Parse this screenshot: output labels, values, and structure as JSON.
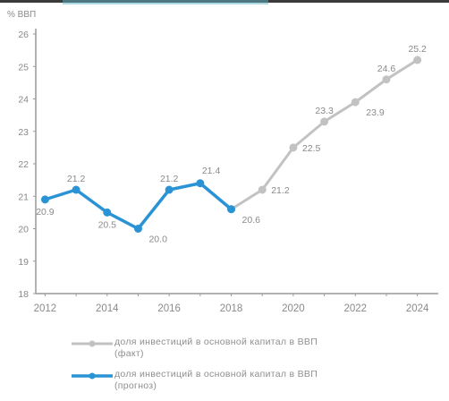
{
  "chart_data": {
    "type": "line",
    "ylabel": "% ВВП",
    "ylim": [
      18,
      26
    ],
    "y_ticks": [
      18,
      19,
      20,
      21,
      22,
      23,
      24,
      25,
      26
    ],
    "x_ticks": [
      2012,
      2014,
      2016,
      2018,
      2020,
      2022,
      2024
    ],
    "xlim": [
      2011.7,
      2024.5
    ],
    "series": [
      {
        "name": "доля инвестиций в основной капитал в ВВП (факт)",
        "color": "#c2c2c2",
        "x": [
          2018,
          2019,
          2020,
          2021,
          2022,
          2023,
          2024
        ],
        "y": [
          20.6,
          21.2,
          22.5,
          23.3,
          23.9,
          24.6,
          25.2
        ]
      },
      {
        "name": "доля инвестиций в основной капитал в ВВП (прогноз)",
        "color": "#2a93d5",
        "x": [
          2012,
          2013,
          2014,
          2015,
          2016,
          2017,
          2018
        ],
        "y": [
          20.9,
          21.2,
          20.5,
          20.0,
          21.2,
          21.4,
          20.6
        ]
      }
    ],
    "data_labels": [
      {
        "x": 2012,
        "y": 20.9,
        "text": "20.9",
        "pos": "below"
      },
      {
        "x": 2013,
        "y": 21.2,
        "text": "21.2",
        "pos": "above"
      },
      {
        "x": 2014,
        "y": 20.5,
        "text": "20.5",
        "pos": "below"
      },
      {
        "x": 2015,
        "y": 20.0,
        "text": "20.0",
        "pos": "below-right"
      },
      {
        "x": 2016,
        "y": 21.2,
        "text": "21.2",
        "pos": "above"
      },
      {
        "x": 2017,
        "y": 21.4,
        "text": "21.4",
        "pos": "above-right"
      },
      {
        "x": 2018,
        "y": 20.6,
        "text": "20.6",
        "pos": "below-right"
      },
      {
        "x": 2019,
        "y": 21.2,
        "text": "21.2",
        "pos": "right"
      },
      {
        "x": 2020,
        "y": 22.5,
        "text": "22.5",
        "pos": "right"
      },
      {
        "x": 2021,
        "y": 23.3,
        "text": "23.3",
        "pos": "above"
      },
      {
        "x": 2022,
        "y": 23.9,
        "text": "23.9",
        "pos": "below-right"
      },
      {
        "x": 2023,
        "y": 24.6,
        "text": "24.6",
        "pos": "above"
      },
      {
        "x": 2024,
        "y": 25.2,
        "text": "25.2",
        "pos": "above"
      }
    ],
    "grid": false
  },
  "legend": {
    "fact_line1": "доля инвестиций в основной капитал в ВВП",
    "fact_line2": "(факт)",
    "forecast_line1": "доля инвестиций в основной капитал в ВВП",
    "forecast_line2": "(прогноз)"
  }
}
